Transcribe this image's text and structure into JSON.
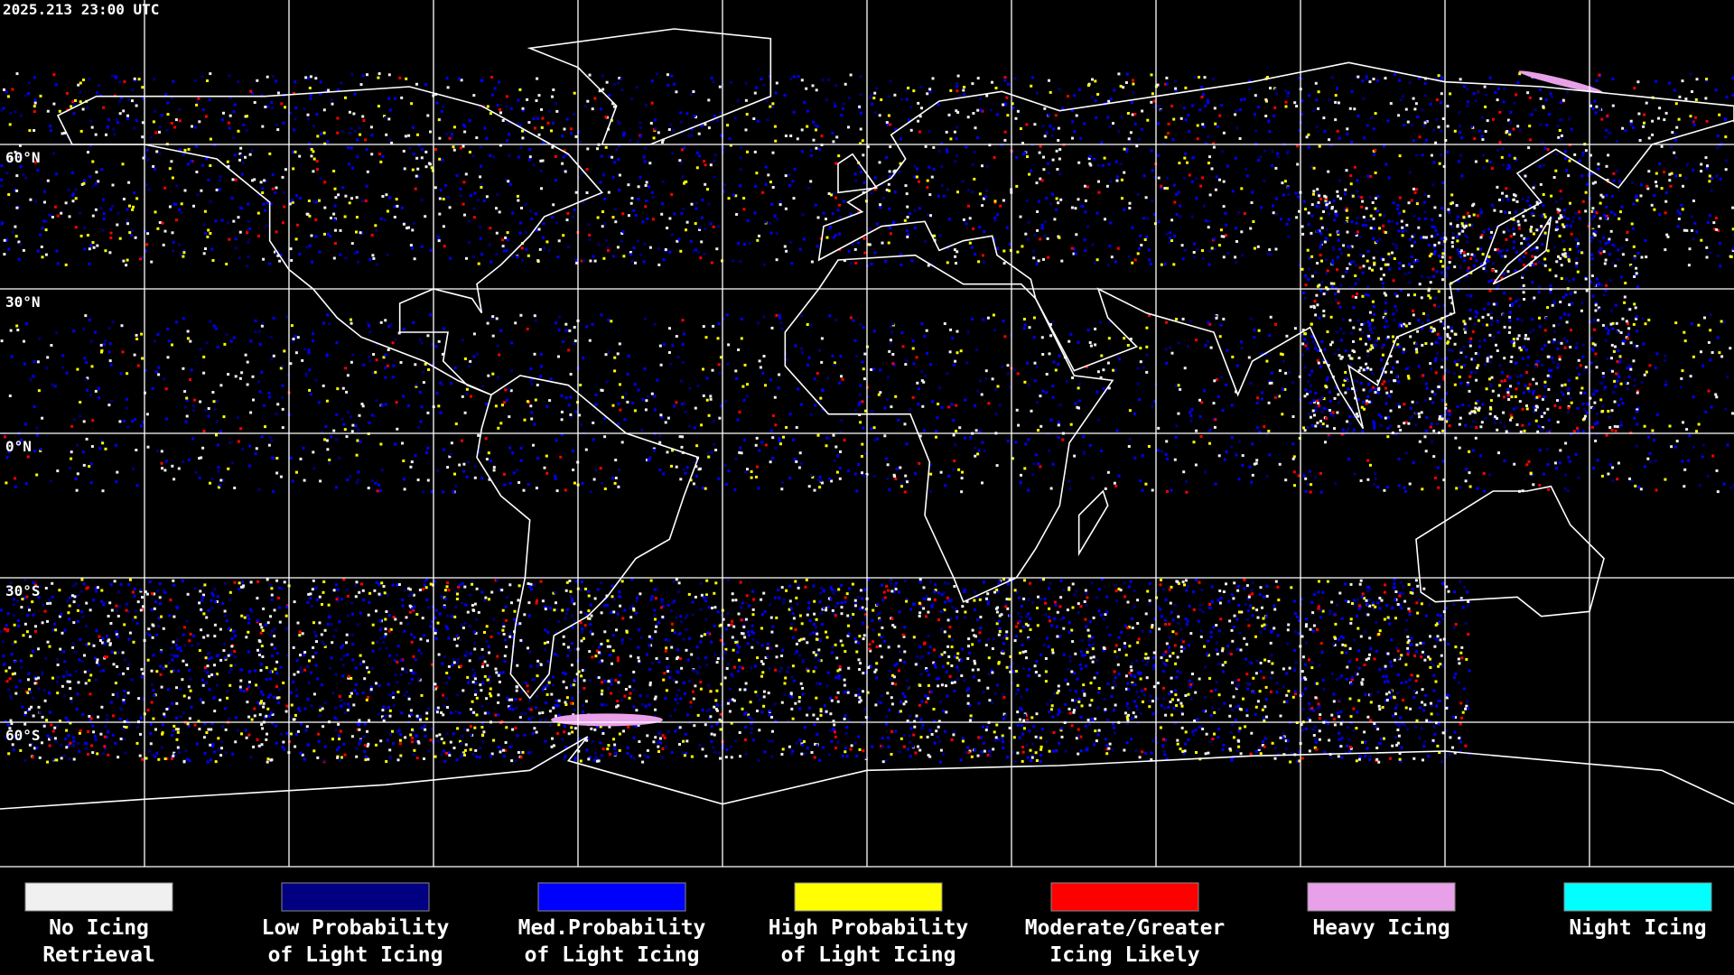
{
  "header": {
    "timestamp": "2025.213 23:00 UTC"
  },
  "map": {
    "lat_labels": [
      "60°N",
      "30°N",
      "0°N",
      "30°S",
      "60°S"
    ]
  },
  "legend": [
    {
      "color": "#f0f0f0",
      "label": [
        "No Icing",
        "Retrieval"
      ]
    },
    {
      "color": "#000080",
      "label": [
        "Low Probability",
        "of Light Icing"
      ]
    },
    {
      "color": "#0000ff",
      "label": [
        "Med.Probability",
        "of Light Icing"
      ]
    },
    {
      "color": "#ffff00",
      "label": [
        "High Probability",
        "of Light Icing"
      ]
    },
    {
      "color": "#ff0000",
      "label": [
        "Moderate/Greater",
        "Icing Likely"
      ]
    },
    {
      "color": "#e8a0e8",
      "label": [
        "Heavy Icing"
      ]
    },
    {
      "color": "#00ffff",
      "label": [
        "Night Icing"
      ]
    }
  ]
}
